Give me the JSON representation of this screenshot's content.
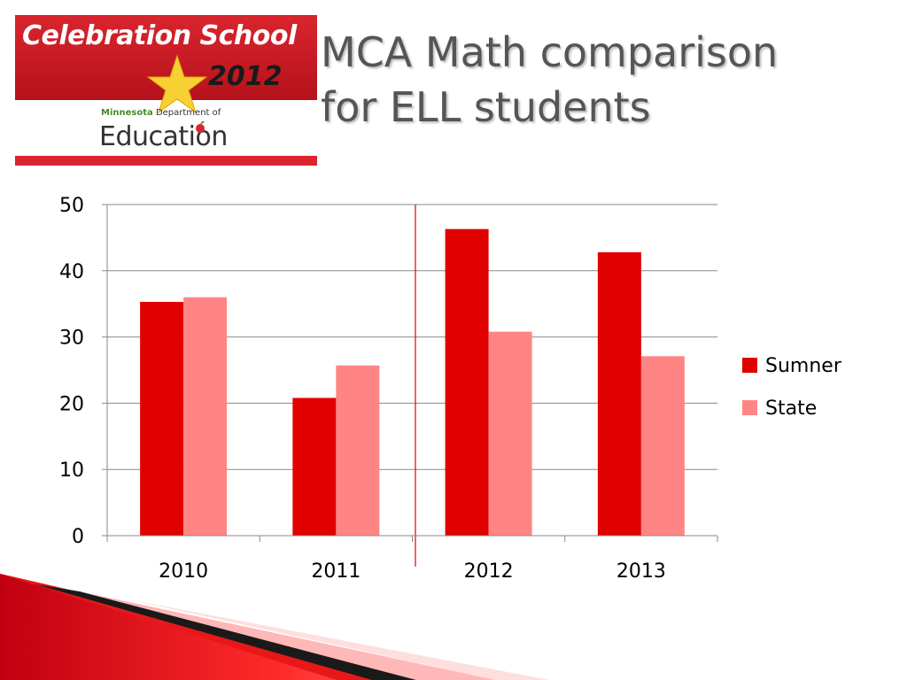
{
  "logo": {
    "school_text": "Celebration School",
    "year_text": "2012",
    "state_text": "Minnesota",
    "dept_text": "Department of",
    "edu_text": "Education",
    "brand_red": "#d9252e"
  },
  "slide": {
    "title_line1": "MCA Math comparison",
    "title_line2": "for ELL students"
  },
  "chart_data": {
    "type": "bar",
    "title": "",
    "xlabel": "",
    "ylabel": "",
    "categories": [
      "2010",
      "2011",
      "2012",
      "2013"
    ],
    "series": [
      {
        "name": "Sumner",
        "values": [
          35.3,
          20.8,
          46.3,
          42.8
        ],
        "color": "#e00000"
      },
      {
        "name": "State",
        "values": [
          36.0,
          25.7,
          30.8,
          27.1
        ],
        "color": "#ff8585"
      }
    ],
    "ylim": [
      0,
      50
    ],
    "yticks": [
      0,
      10,
      20,
      30,
      40,
      50
    ],
    "grid": true,
    "legend": "right"
  }
}
